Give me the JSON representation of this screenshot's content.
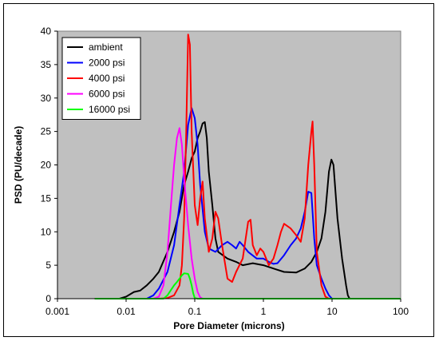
{
  "chart_data": {
    "type": "line",
    "title": "",
    "xlabel": "Pore Diameter (microns)",
    "ylabel": "PSD (PU/decade)",
    "x_scale": "log",
    "xlim": [
      0.001,
      100
    ],
    "ylim": [
      0,
      40
    ],
    "x_ticks": [
      0.001,
      0.01,
      0.1,
      1,
      10,
      100
    ],
    "x_tick_labels": [
      "0.001",
      "0.01",
      "0.1",
      "1",
      "10",
      "100"
    ],
    "y_ticks": [
      0,
      5,
      10,
      15,
      20,
      25,
      30,
      35,
      40
    ],
    "y_tick_labels": [
      "0",
      "5",
      "10",
      "15",
      "20",
      "25",
      "30",
      "35",
      "40"
    ],
    "grid": false,
    "plot_background": "#c0c0c0",
    "legend_position": "top-left",
    "series": [
      {
        "name": "ambient",
        "color": "#000000",
        "points": [
          [
            0.0035,
            0
          ],
          [
            0.008,
            0
          ],
          [
            0.01,
            0.3
          ],
          [
            0.013,
            1
          ],
          [
            0.016,
            1.2
          ],
          [
            0.02,
            2
          ],
          [
            0.025,
            3
          ],
          [
            0.03,
            4
          ],
          [
            0.04,
            7
          ],
          [
            0.05,
            10
          ],
          [
            0.06,
            13
          ],
          [
            0.07,
            17
          ],
          [
            0.08,
            19
          ],
          [
            0.09,
            21
          ],
          [
            0.1,
            22
          ],
          [
            0.11,
            24
          ],
          [
            0.12,
            25
          ],
          [
            0.13,
            26.2
          ],
          [
            0.14,
            26.4
          ],
          [
            0.15,
            24
          ],
          [
            0.16,
            19
          ],
          [
            0.18,
            14
          ],
          [
            0.2,
            9
          ],
          [
            0.22,
            7
          ],
          [
            0.3,
            6
          ],
          [
            0.4,
            5.5
          ],
          [
            0.5,
            5
          ],
          [
            0.7,
            5.3
          ],
          [
            1,
            5
          ],
          [
            1.5,
            4.4
          ],
          [
            2,
            4
          ],
          [
            3,
            3.9
          ],
          [
            4,
            4.5
          ],
          [
            5,
            5.5
          ],
          [
            6,
            7
          ],
          [
            7,
            9
          ],
          [
            8,
            13
          ],
          [
            9,
            19
          ],
          [
            9.8,
            20.8
          ],
          [
            10.5,
            20
          ],
          [
            12,
            12
          ],
          [
            14,
            6
          ],
          [
            16,
            2
          ],
          [
            17,
            0.5
          ],
          [
            18,
            0
          ],
          [
            100,
            0
          ]
        ]
      },
      {
        "name": "2000 psi",
        "color": "#0000ff",
        "points": [
          [
            0.0035,
            0
          ],
          [
            0.02,
            0
          ],
          [
            0.025,
            0.5
          ],
          [
            0.03,
            1.5
          ],
          [
            0.04,
            4
          ],
          [
            0.05,
            8
          ],
          [
            0.06,
            14
          ],
          [
            0.07,
            19
          ],
          [
            0.08,
            26
          ],
          [
            0.09,
            28.5
          ],
          [
            0.1,
            27
          ],
          [
            0.11,
            23
          ],
          [
            0.12,
            17
          ],
          [
            0.14,
            10
          ],
          [
            0.16,
            7.5
          ],
          [
            0.2,
            7
          ],
          [
            0.25,
            8
          ],
          [
            0.3,
            8.5
          ],
          [
            0.35,
            8
          ],
          [
            0.4,
            7.5
          ],
          [
            0.45,
            8.5
          ],
          [
            0.5,
            8
          ],
          [
            0.6,
            7
          ],
          [
            0.8,
            6
          ],
          [
            1,
            6
          ],
          [
            1.2,
            5.5
          ],
          [
            1.4,
            5.2
          ],
          [
            1.6,
            5.3
          ],
          [
            2,
            6.5
          ],
          [
            2.5,
            8
          ],
          [
            3,
            9
          ],
          [
            3.5,
            10.5
          ],
          [
            4,
            13
          ],
          [
            4.5,
            16
          ],
          [
            5,
            15.8
          ],
          [
            5.5,
            9
          ],
          [
            6,
            5
          ],
          [
            7,
            3
          ],
          [
            8,
            1.5
          ],
          [
            9,
            0.5
          ],
          [
            10,
            0
          ],
          [
            100,
            0
          ]
        ]
      },
      {
        "name": "4000 psi",
        "color": "#ff0000",
        "points": [
          [
            0.0035,
            0
          ],
          [
            0.03,
            0
          ],
          [
            0.04,
            0.1
          ],
          [
            0.05,
            0.5
          ],
          [
            0.06,
            2
          ],
          [
            0.065,
            5
          ],
          [
            0.07,
            12
          ],
          [
            0.075,
            25
          ],
          [
            0.08,
            39.5
          ],
          [
            0.085,
            38
          ],
          [
            0.09,
            25
          ],
          [
            0.1,
            14
          ],
          [
            0.11,
            11
          ],
          [
            0.12,
            15
          ],
          [
            0.13,
            17.5
          ],
          [
            0.14,
            12
          ],
          [
            0.16,
            7
          ],
          [
            0.18,
            9
          ],
          [
            0.2,
            13
          ],
          [
            0.22,
            12
          ],
          [
            0.25,
            8
          ],
          [
            0.3,
            3
          ],
          [
            0.35,
            2.5
          ],
          [
            0.4,
            4
          ],
          [
            0.5,
            6
          ],
          [
            0.6,
            11.5
          ],
          [
            0.65,
            11.8
          ],
          [
            0.7,
            8
          ],
          [
            0.8,
            6.5
          ],
          [
            0.9,
            7.5
          ],
          [
            1,
            7
          ],
          [
            1.2,
            5
          ],
          [
            1.4,
            6
          ],
          [
            1.6,
            8
          ],
          [
            1.8,
            10
          ],
          [
            2,
            11.2
          ],
          [
            2.5,
            10.5
          ],
          [
            3,
            9.5
          ],
          [
            3.5,
            8.5
          ],
          [
            4,
            12
          ],
          [
            4.5,
            20
          ],
          [
            5,
            25
          ],
          [
            5.2,
            26.5
          ],
          [
            5.5,
            20
          ],
          [
            6,
            7
          ],
          [
            7,
            2
          ],
          [
            8,
            0.3
          ],
          [
            9,
            0
          ],
          [
            100,
            0
          ]
        ]
      },
      {
        "name": "6000 psi",
        "color": "#ff00ff",
        "points": [
          [
            0.0035,
            0
          ],
          [
            0.025,
            0
          ],
          [
            0.03,
            0.3
          ],
          [
            0.035,
            2
          ],
          [
            0.04,
            7
          ],
          [
            0.045,
            14
          ],
          [
            0.05,
            20
          ],
          [
            0.055,
            24
          ],
          [
            0.06,
            25.5
          ],
          [
            0.065,
            23
          ],
          [
            0.07,
            18
          ],
          [
            0.08,
            11
          ],
          [
            0.09,
            6
          ],
          [
            0.1,
            3
          ],
          [
            0.11,
            1
          ],
          [
            0.12,
            0.2
          ],
          [
            0.13,
            0
          ],
          [
            100,
            0
          ]
        ]
      },
      {
        "name": "16000 psi",
        "color": "#00ff00",
        "points": [
          [
            0.0035,
            0
          ],
          [
            0.035,
            0
          ],
          [
            0.04,
            0.5
          ],
          [
            0.045,
            1.3
          ],
          [
            0.05,
            2
          ],
          [
            0.055,
            2.5
          ],
          [
            0.06,
            3
          ],
          [
            0.065,
            3.5
          ],
          [
            0.07,
            3.8
          ],
          [
            0.08,
            3.7
          ],
          [
            0.085,
            3
          ],
          [
            0.09,
            2
          ],
          [
            0.095,
            0.8
          ],
          [
            0.1,
            0.1
          ],
          [
            0.11,
            0
          ],
          [
            100,
            0
          ]
        ]
      }
    ]
  }
}
